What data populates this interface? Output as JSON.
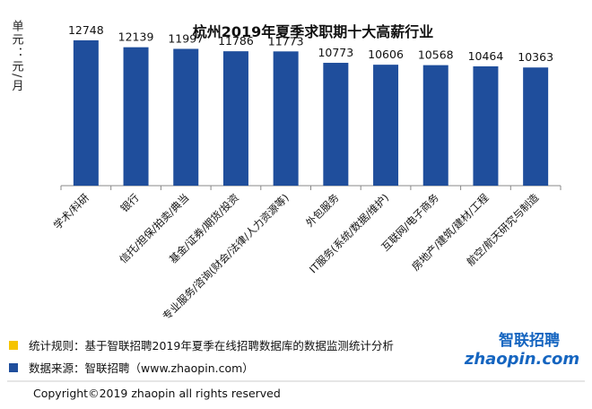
{
  "chart_data": {
    "type": "bar",
    "title": "杭州2019年夏季求职期十大高薪行业",
    "ylabel": "单元：元/月",
    "categories": [
      "学术/科研",
      "银行",
      "信托/担保/拍卖/典当",
      "基金/证券/期货/投资",
      "专业服务/咨询(财会/法律/人力资源等)",
      "外包服务",
      "IT服务(系统/数据/维护)",
      "互联网/电子商务",
      "房地产/建筑/建材/工程",
      "航空/航天研究与制造"
    ],
    "values": [
      12748,
      12139,
      11997,
      11786,
      11773,
      10773,
      10606,
      10568,
      10464,
      10363
    ],
    "bar_color": "#1f4e9c",
    "grid": false,
    "ylim": [
      0,
      14000
    ]
  },
  "footer": {
    "rule_label": "统计规则：",
    "rule_text": "基于智联招聘2019年夏季在线招聘数据库的数据监测统计分析",
    "source_label": "数据来源：",
    "source_text": "智联招聘（www.zhaopin.com）",
    "copyright": "Copyright©2019 zhaopin all rights reserved",
    "rule_marker_color": "#f5c400",
    "source_marker_color": "#1f4e9c"
  },
  "logo": {
    "cn": "智联招聘",
    "en": "zhaopin.com",
    "primary_color": "#1565c0",
    "accent_color": "#f5a300"
  }
}
